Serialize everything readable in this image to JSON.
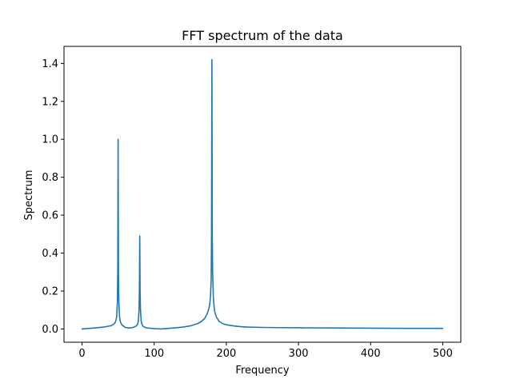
{
  "chart_data": {
    "type": "line",
    "title": "FFT spectrum of the data",
    "xlabel": "Frequency",
    "ylabel": "Spectrum",
    "xlim": [
      -25,
      525
    ],
    "ylim": [
      -0.07,
      1.49
    ],
    "grid": false,
    "legend": "none",
    "x_ticks": [
      0,
      100,
      200,
      300,
      400,
      500
    ],
    "x_tick_labels": [
      "0",
      "100",
      "200",
      "300",
      "400",
      "500"
    ],
    "y_ticks": [
      0.0,
      0.2,
      0.4,
      0.6,
      0.8,
      1.0,
      1.2,
      1.4
    ],
    "y_tick_labels": [
      "0.0",
      "0.2",
      "0.4",
      "0.6",
      "0.8",
      "1.0",
      "1.2",
      "1.4"
    ],
    "series": [
      {
        "color": "#1f77b4",
        "x": [
          0,
          10,
          20,
          30,
          40,
          44,
          46,
          47,
          48,
          49,
          49.5,
          50,
          50.5,
          51,
          52,
          53,
          55,
          60,
          65,
          70,
          75,
          77,
          78,
          79,
          79.5,
          80,
          80.5,
          81,
          82,
          83,
          85,
          90,
          100,
          110,
          120,
          130,
          140,
          150,
          160,
          165,
          170,
          174,
          176,
          177,
          178,
          179,
          179.5,
          180,
          180.5,
          181,
          182,
          183,
          184,
          186,
          190,
          195,
          200,
          210,
          220,
          230,
          250,
          275,
          300,
          350,
          400,
          450,
          500
        ],
        "y": [
          0.0,
          0.003,
          0.006,
          0.01,
          0.017,
          0.025,
          0.035,
          0.045,
          0.065,
          0.14,
          0.3,
          1.0,
          0.3,
          0.14,
          0.065,
          0.04,
          0.022,
          0.008,
          0.005,
          0.007,
          0.015,
          0.025,
          0.04,
          0.1,
          0.2,
          0.49,
          0.2,
          0.1,
          0.04,
          0.025,
          0.012,
          0.005,
          0.002,
          0.0,
          0.003,
          0.006,
          0.01,
          0.016,
          0.028,
          0.038,
          0.055,
          0.085,
          0.11,
          0.13,
          0.17,
          0.26,
          0.5,
          1.42,
          0.5,
          0.3,
          0.17,
          0.12,
          0.09,
          0.065,
          0.04,
          0.028,
          0.022,
          0.016,
          0.012,
          0.01,
          0.008,
          0.007,
          0.006,
          0.005,
          0.004,
          0.003,
          0.003
        ]
      }
    ]
  }
}
